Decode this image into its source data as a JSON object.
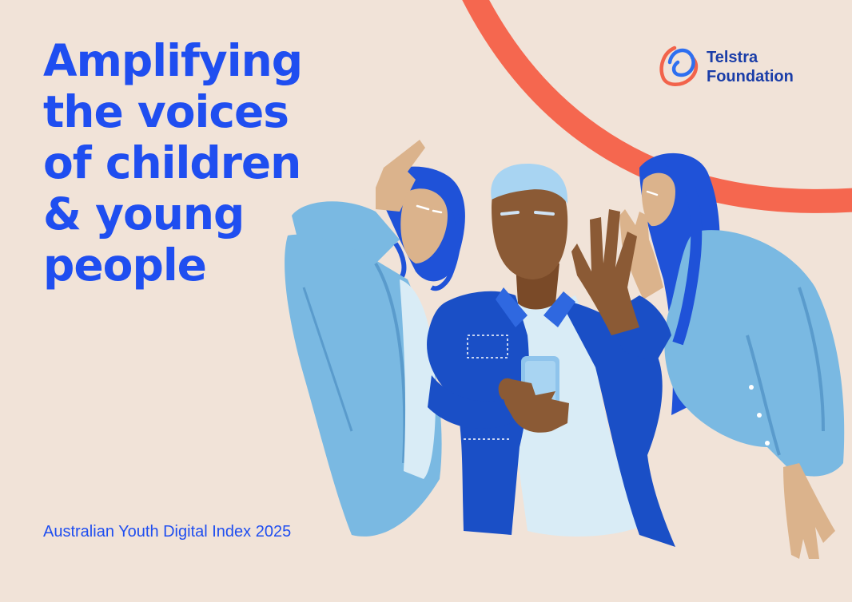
{
  "headline": {
    "lines": [
      "Amplifying",
      "the voices",
      "of children",
      "& young",
      "people"
    ]
  },
  "logo": {
    "line1": "Telstra",
    "line2": "Foundation",
    "icon": "telstra-foundation-logo-icon",
    "colors": {
      "coral": "#f2634b",
      "blue": "#2e6ff0",
      "text": "#1a3da8"
    }
  },
  "footer": {
    "title": "Australian Youth Digital Index 2025"
  },
  "illustration": {
    "subject": "three-young-people-illustration",
    "colors": {
      "background": "#f1e3d8",
      "arc": "#f5674f",
      "light_blue": "#7ab9e2",
      "royal_blue": "#1a4fc6",
      "hair_blue": "#1f52d8",
      "skin_light": "#dbb38c",
      "skin_dark": "#8b5a35"
    }
  }
}
